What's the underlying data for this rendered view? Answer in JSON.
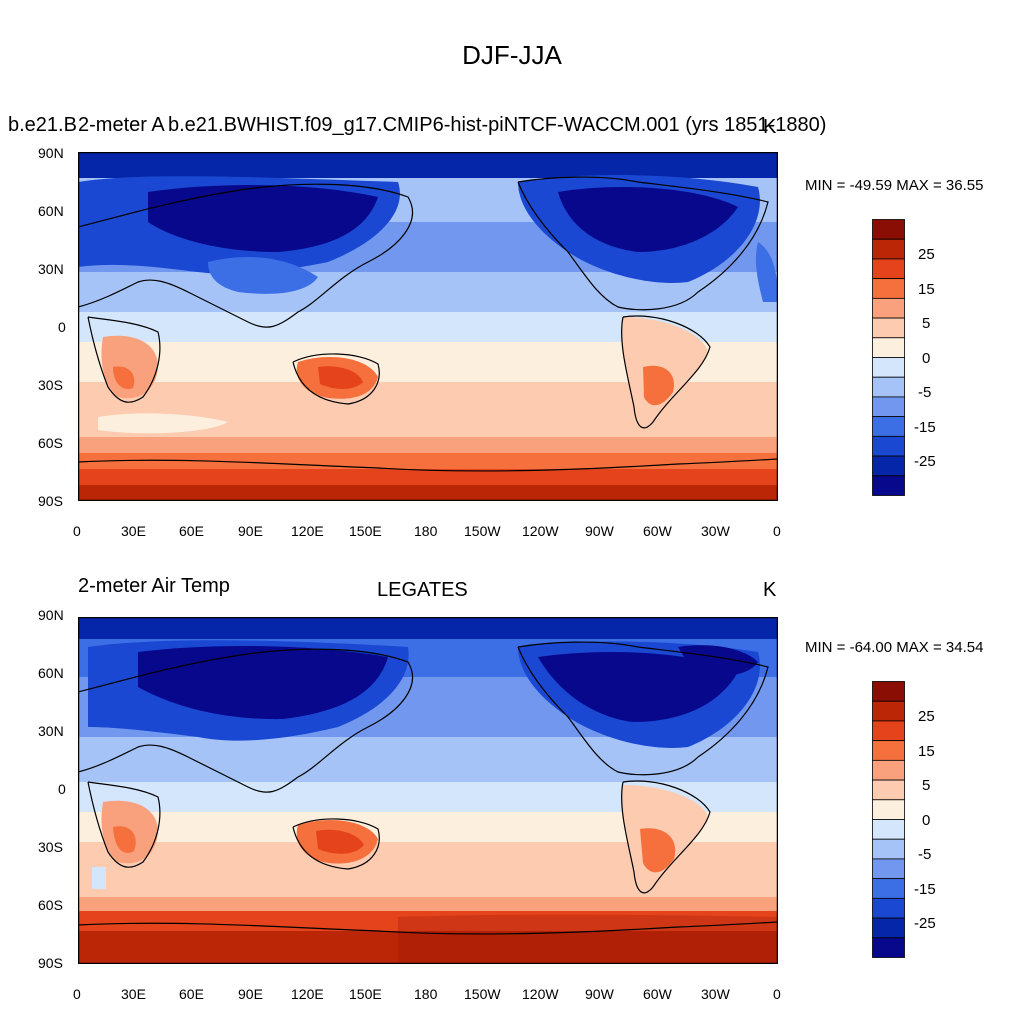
{
  "figure": {
    "title": "DJF-JJA"
  },
  "colors": {
    "levels": [
      "#08088c",
      "#0526a8",
      "#1a48d2",
      "#3c6ee6",
      "#7198ee",
      "#a5c3f7",
      "#d4e6fb",
      "#fdefdd",
      "#fccbb0",
      "#f9a17d",
      "#f5703d",
      "#e4431b",
      "#bb2607",
      "#8a0e04"
    ]
  },
  "colorbar": {
    "labels": [
      "25",
      "15",
      "5",
      "0",
      "-5",
      "-15",
      "-25"
    ]
  },
  "axes": {
    "lat_labels": [
      "90N",
      "60N",
      "30N",
      "0",
      "30S",
      "60S",
      "90S"
    ],
    "lon_labels": [
      "0",
      "30E",
      "60E",
      "90E",
      "120E",
      "150E",
      "180",
      "150W",
      "120W",
      "90W",
      "60W",
      "30W",
      "0"
    ]
  },
  "panels": [
    {
      "left_string": "2-meter Air Temp",
      "center_string": "b.e21.BWHIST.f09_g17.CMIP6-hist-piNTCF-WACCM.001 (yrs 1851-1880)",
      "left_overlay": "b.e21.B",
      "units": "K",
      "min_max": "MIN = -49.59 MAX =  36.55"
    },
    {
      "left_string": "2-meter Air Temp",
      "center_string": "LEGATES",
      "units": "K",
      "min_max": "MIN = -64.00 MAX =  34.54"
    }
  ],
  "chart_data": {
    "type": "heatmap",
    "title": "DJF-JJA",
    "variable": "2-meter Air Temp",
    "units": "K",
    "contour_levels": [
      -30,
      -25,
      -20,
      -15,
      -10,
      -5,
      0,
      5,
      10,
      15,
      20,
      25,
      30
    ],
    "colorbar_tick_labels": [
      25,
      15,
      5,
      0,
      -5,
      -15,
      -25
    ],
    "lat_ticks": [
      "90N",
      "60N",
      "30N",
      "0",
      "30S",
      "60S",
      "90S"
    ],
    "lon_ticks": [
      "0",
      "30E",
      "60E",
      "90E",
      "120E",
      "150E",
      "180",
      "150W",
      "120W",
      "90W",
      "60W",
      "30W",
      "0"
    ],
    "panels": [
      {
        "dataset": "b.e21.BWHIST.f09_g17.CMIP6-hist-piNTCF-WACCM.001 (yrs 1851-1880)",
        "min": -49.59,
        "max": 36.55
      },
      {
        "dataset": "LEGATES",
        "min": -64.0,
        "max": 34.54
      }
    ]
  }
}
